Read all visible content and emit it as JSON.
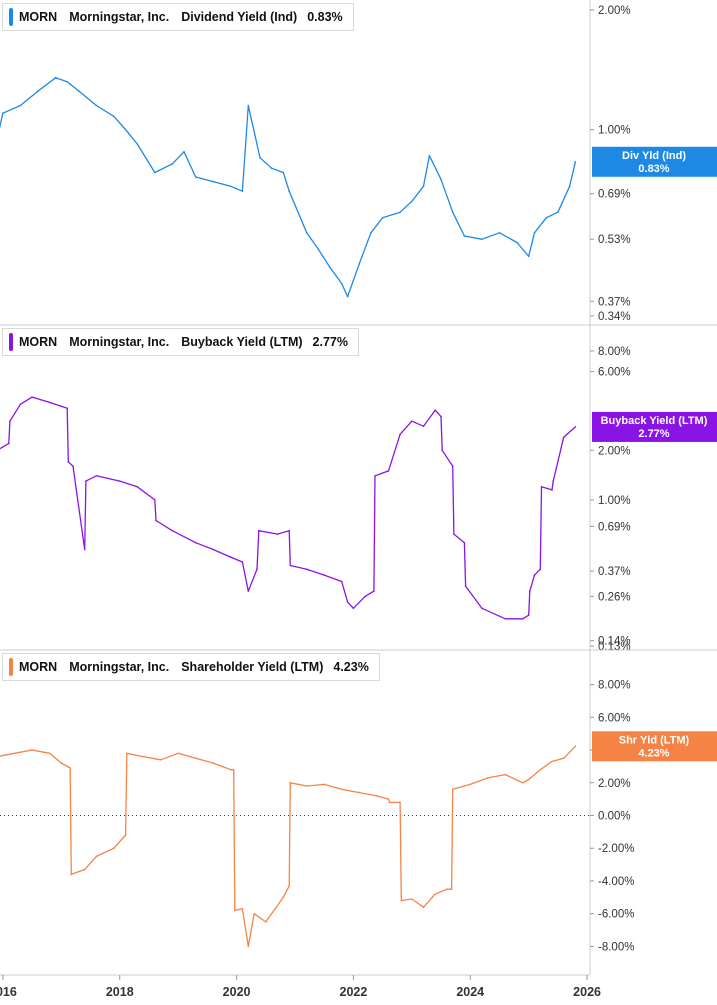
{
  "colors": {
    "div": "#1e88e5",
    "buyback": "#8a14e6",
    "shr": "#f58345",
    "axis": "#cccccc"
  },
  "legends": [
    {
      "ticker": "MORN",
      "company": "Morningstar, Inc.",
      "metric": "Dividend Yield (Ind)",
      "value": "0.83%"
    },
    {
      "ticker": "MORN",
      "company": "Morningstar, Inc.",
      "metric": "Buyback Yield (LTM)",
      "value": "2.77%"
    },
    {
      "ticker": "MORN",
      "company": "Morningstar, Inc.",
      "metric": "Shareholder Yield (LTM)",
      "value": "4.23%"
    }
  ],
  "chart_data": [
    {
      "type": "line",
      "title": "Dividend Yield (Ind)",
      "scale": "log",
      "ylim": [
        0.33,
        2.0
      ],
      "y_ticks": [
        "2.00%",
        "1.00%",
        "0.69%",
        "0.53%",
        "0.37%",
        "0.34%"
      ],
      "tag": {
        "label": "Div Yld (Ind)",
        "value": "0.83%"
      },
      "x": [
        2015.9,
        2016.0,
        2016.3,
        2016.6,
        2016.9,
        2017.1,
        2017.3,
        2017.6,
        2017.9,
        2018.1,
        2018.3,
        2018.6,
        2018.9,
        2019.1,
        2019.3,
        2019.6,
        2019.9,
        2020.1,
        2020.2,
        2020.4,
        2020.6,
        2020.8,
        2020.9,
        2021.2,
        2021.4,
        2021.6,
        2021.8,
        2021.9,
        2022.1,
        2022.3,
        2022.5,
        2022.8,
        2023.0,
        2023.2,
        2023.3,
        2023.5,
        2023.7,
        2023.9,
        2024.2,
        2024.5,
        2024.8,
        2025.0,
        2025.1,
        2025.3,
        2025.5,
        2025.7,
        2025.8
      ],
      "values": [
        0.95,
        1.1,
        1.15,
        1.25,
        1.35,
        1.32,
        1.25,
        1.15,
        1.08,
        1.0,
        0.92,
        0.78,
        0.82,
        0.88,
        0.76,
        0.74,
        0.72,
        0.7,
        1.15,
        0.85,
        0.8,
        0.78,
        0.7,
        0.55,
        0.5,
        0.45,
        0.41,
        0.38,
        0.46,
        0.55,
        0.6,
        0.62,
        0.66,
        0.72,
        0.86,
        0.75,
        0.62,
        0.54,
        0.53,
        0.55,
        0.52,
        0.48,
        0.55,
        0.6,
        0.62,
        0.72,
        0.83
      ]
    },
    {
      "type": "line",
      "title": "Buyback Yield (LTM)",
      "scale": "log",
      "ylim": [
        0.13,
        10.0
      ],
      "y_ticks": [
        "8.00%",
        "6.00%",
        "2.00%",
        "1.00%",
        "0.69%",
        "0.37%",
        "0.26%",
        "0.14%",
        "0.13%"
      ],
      "tag": {
        "label": "Buyback Yield (LTM)",
        "value": "2.77%"
      },
      "x": [
        2015.9,
        2016.1,
        2016.12,
        2016.3,
        2016.5,
        2016.8,
        2017.0,
        2017.1,
        2017.12,
        2017.2,
        2017.4,
        2017.42,
        2017.6,
        2018.0,
        2018.3,
        2018.6,
        2018.62,
        2018.9,
        2019.3,
        2019.6,
        2019.9,
        2020.1,
        2020.2,
        2020.35,
        2020.38,
        2020.7,
        2020.9,
        2020.92,
        2021.2,
        2021.5,
        2021.8,
        2021.9,
        2022.0,
        2022.2,
        2022.35,
        2022.37,
        2022.6,
        2022.8,
        2023.0,
        2023.2,
        2023.4,
        2023.5,
        2023.52,
        2023.7,
        2023.72,
        2023.9,
        2023.92,
        2024.2,
        2024.6,
        2024.9,
        2025.0,
        2025.02,
        2025.1,
        2025.2,
        2025.22,
        2025.4,
        2025.42,
        2025.6,
        2025.8
      ],
      "values": [
        2.0,
        2.2,
        3.0,
        3.8,
        4.2,
        3.9,
        3.7,
        3.6,
        1.7,
        1.6,
        0.5,
        1.3,
        1.4,
        1.3,
        1.2,
        1.0,
        0.75,
        0.65,
        0.55,
        0.5,
        0.45,
        0.42,
        0.28,
        0.38,
        0.65,
        0.62,
        0.65,
        0.4,
        0.38,
        0.35,
        0.32,
        0.24,
        0.22,
        0.26,
        0.28,
        1.4,
        1.5,
        2.5,
        3.0,
        2.8,
        3.5,
        3.2,
        2.0,
        1.6,
        0.62,
        0.55,
        0.3,
        0.22,
        0.19,
        0.19,
        0.2,
        0.28,
        0.35,
        0.38,
        1.2,
        1.15,
        1.3,
        2.4,
        2.77
      ]
    },
    {
      "type": "line",
      "title": "Shareholder Yield (LTM)",
      "scale": "linear",
      "ylim": [
        -9.5,
        9.5
      ],
      "y_ticks": [
        "8.00%",
        "6.00%",
        "4.00%",
        "2.00%",
        "0.00%",
        "-2.00%",
        "-4.00%",
        "-6.00%",
        "-8.00%"
      ],
      "tag": {
        "label": "Shr Yld (LTM)",
        "value": "4.23%"
      },
      "x": [
        2015.9,
        2016.2,
        2016.5,
        2016.8,
        2017.0,
        2017.15,
        2017.17,
        2017.4,
        2017.6,
        2017.9,
        2018.1,
        2018.12,
        2018.4,
        2018.7,
        2019.0,
        2019.3,
        2019.6,
        2019.9,
        2019.95,
        2019.97,
        2020.1,
        2020.2,
        2020.3,
        2020.5,
        2020.8,
        2020.9,
        2020.92,
        2021.2,
        2021.5,
        2021.8,
        2022.1,
        2022.4,
        2022.6,
        2022.62,
        2022.8,
        2022.82,
        2023.0,
        2023.2,
        2023.4,
        2023.6,
        2023.68,
        2023.7,
        2024.0,
        2024.3,
        2024.6,
        2024.9,
        2025.0,
        2025.2,
        2025.4,
        2025.6,
        2025.8
      ],
      "values": [
        3.6,
        3.8,
        4.0,
        3.8,
        3.2,
        2.9,
        -3.6,
        -3.3,
        -2.5,
        -2.0,
        -1.2,
        3.8,
        3.6,
        3.4,
        3.8,
        3.5,
        3.2,
        2.8,
        2.8,
        -5.8,
        -5.7,
        -8.0,
        -6.0,
        -6.5,
        -5.0,
        -4.3,
        2.0,
        1.8,
        1.9,
        1.6,
        1.4,
        1.2,
        1.0,
        0.8,
        0.8,
        -5.2,
        -5.1,
        -5.6,
        -4.8,
        -4.5,
        -4.5,
        1.6,
        1.9,
        2.3,
        2.5,
        2.0,
        2.2,
        2.8,
        3.3,
        3.5,
        4.23
      ]
    }
  ],
  "x_axis": {
    "labels": [
      "2016",
      "2018",
      "2020",
      "2022",
      "2024",
      "2026"
    ],
    "years": [
      2016,
      2018,
      2020,
      2022,
      2024,
      2026
    ]
  }
}
